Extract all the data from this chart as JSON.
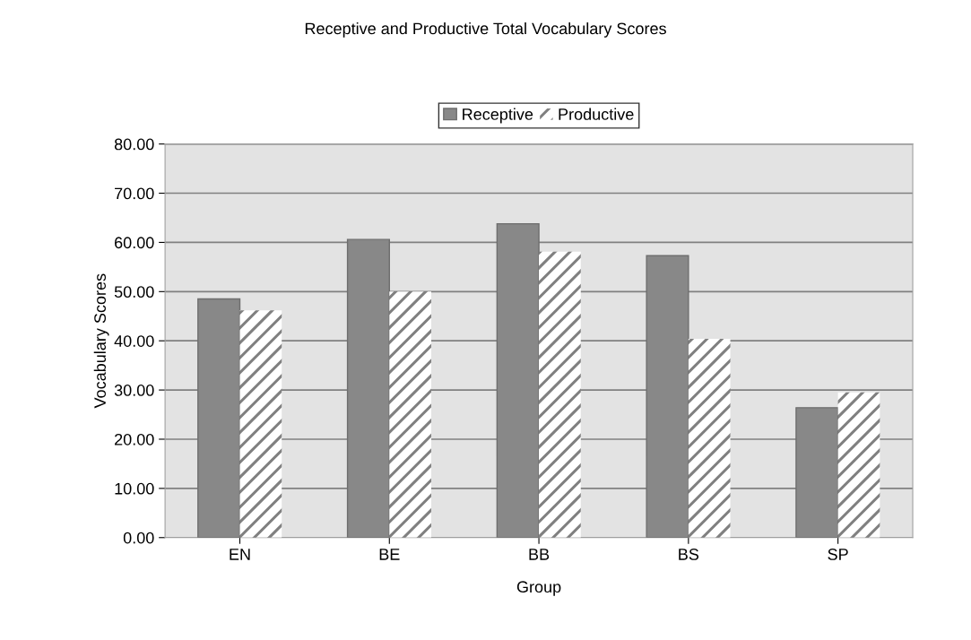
{
  "chart_data": {
    "type": "bar",
    "title": "Receptive and Productive Total Vocabulary Scores",
    "xlabel": "Group",
    "ylabel": "Vocabulary Scores",
    "categories": [
      "EN",
      "BE",
      "BB",
      "BS",
      "SP"
    ],
    "series": [
      {
        "name": "Receptive",
        "color": "#888888",
        "values": [
          48.5,
          60.6,
          63.8,
          57.3,
          26.4
        ]
      },
      {
        "name": "Productive",
        "color": "#ffffff",
        "values": [
          46.2,
          50.0,
          58.1,
          40.4,
          29.5
        ]
      }
    ],
    "ylim": [
      0,
      80
    ],
    "yticks": [
      {
        "value": 0,
        "label": "0.00"
      },
      {
        "value": 10,
        "label": "10.00"
      },
      {
        "value": 20,
        "label": "20.00"
      },
      {
        "value": 30,
        "label": "30.00"
      },
      {
        "value": 40,
        "label": "40.00"
      },
      {
        "value": 50,
        "label": "50.00"
      },
      {
        "value": 60,
        "label": "60.00"
      },
      {
        "value": 70,
        "label": "70.00"
      },
      {
        "value": 80,
        "label": "80.00"
      }
    ],
    "grid": "y",
    "legend": "top"
  }
}
